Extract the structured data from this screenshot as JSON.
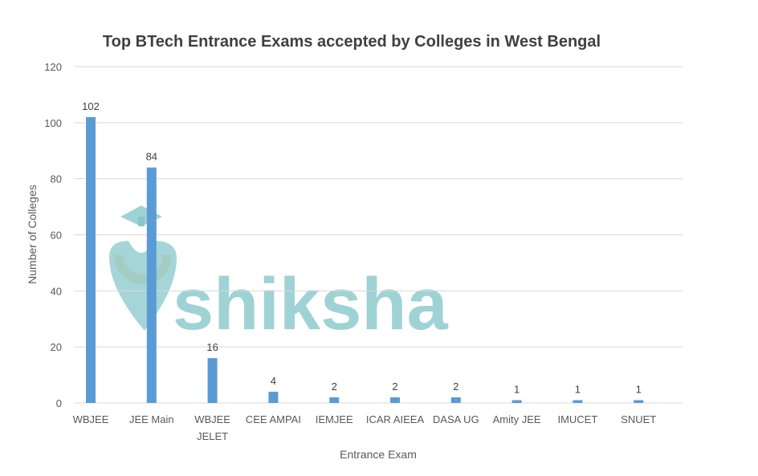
{
  "chart_data": {
    "type": "bar",
    "title": "Top BTech Entrance Exams accepted by Colleges in West Bengal",
    "xlabel": "Entrance Exam",
    "ylabel": "Number  of Colleges",
    "categories": [
      [
        "WBJEE"
      ],
      [
        "JEE Main"
      ],
      [
        "WBJEE",
        "JELET"
      ],
      [
        "CEE AMPAI"
      ],
      [
        "IEMJEE"
      ],
      [
        "ICAR AIEEA"
      ],
      [
        "DASA UG"
      ],
      [
        "Amity JEE"
      ],
      [
        "IMUCET"
      ],
      [
        "SNUET"
      ]
    ],
    "values": [
      102,
      84,
      16,
      4,
      2,
      2,
      2,
      1,
      1,
      1
    ],
    "ylim": [
      0,
      120
    ],
    "yticks": [
      0,
      20,
      40,
      60,
      80,
      100,
      120
    ],
    "grid": true,
    "legend": "none",
    "bar_color": "#5b9bd5"
  },
  "watermark": {
    "text": "shiksha",
    "color": "#7fc3c7"
  }
}
